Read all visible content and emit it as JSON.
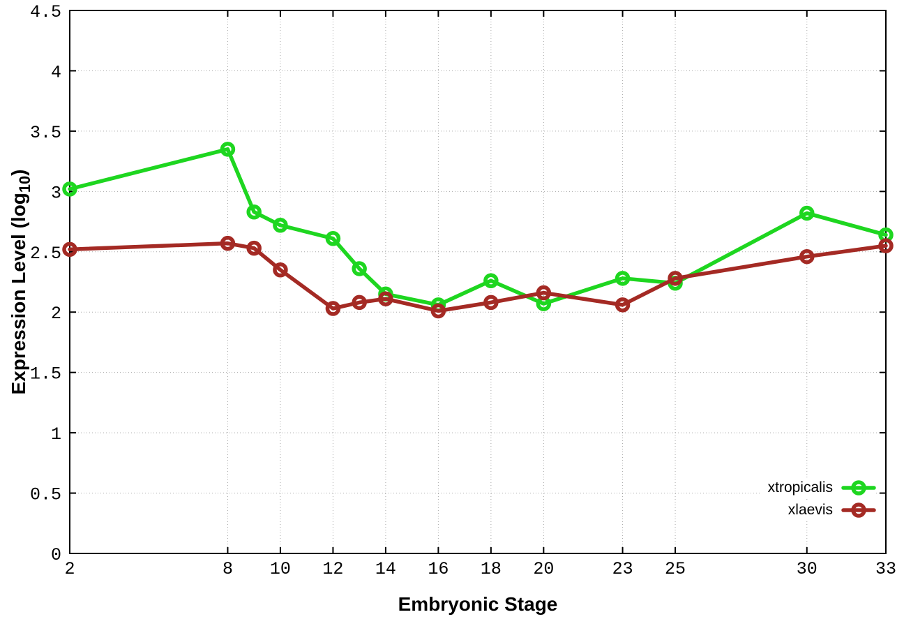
{
  "chart_data": {
    "type": "line",
    "title": "",
    "xlabel": "Embryonic Stage",
    "ylabel": {
      "text": "Expression Level (log",
      "sub": "10",
      "after": ")"
    },
    "xlim": [
      2,
      33
    ],
    "ylim": [
      0,
      4.5
    ],
    "grid": true,
    "legend_position": "bottom-right",
    "x": [
      2,
      8,
      9,
      10,
      12,
      13,
      14,
      16,
      18,
      20,
      23,
      25,
      30,
      33
    ],
    "series": [
      {
        "name": "xtropicalis",
        "color": "#1ed620",
        "values": [
          3.02,
          3.35,
          2.83,
          2.72,
          2.61,
          2.36,
          2.15,
          2.06,
          2.26,
          2.07,
          2.28,
          2.24,
          2.82,
          2.64
        ]
      },
      {
        "name": "xlaevis",
        "color": "#a42a24",
        "values": [
          2.52,
          2.57,
          2.53,
          2.35,
          2.03,
          2.08,
          2.11,
          2.01,
          2.08,
          2.16,
          2.06,
          2.28,
          2.46,
          2.55
        ]
      }
    ],
    "xticks": [
      {
        "value": 2,
        "label": "2"
      },
      {
        "value": 8,
        "label": "8"
      },
      {
        "value": 10,
        "label": "10"
      },
      {
        "value": 12,
        "label": "12"
      },
      {
        "value": 14,
        "label": "14"
      },
      {
        "value": 16,
        "label": "16"
      },
      {
        "value": 18,
        "label": "18"
      },
      {
        "value": 20,
        "label": "20"
      },
      {
        "value": 23,
        "label": "23"
      },
      {
        "value": 25,
        "label": "25"
      },
      {
        "value": 30,
        "label": "30"
      },
      {
        "value": 33,
        "label": "33"
      }
    ],
    "yticks": [
      {
        "value": 0,
        "label": "0"
      },
      {
        "value": 0.5,
        "label": "0.5"
      },
      {
        "value": 1,
        "label": "1"
      },
      {
        "value": 1.5,
        "label": "1.5"
      },
      {
        "value": 2,
        "label": "2"
      },
      {
        "value": 2.5,
        "label": "2.5"
      },
      {
        "value": 3,
        "label": "3"
      },
      {
        "value": 3.5,
        "label": "3.5"
      },
      {
        "value": 4,
        "label": "4"
      },
      {
        "value": 4.5,
        "label": "4.5"
      }
    ]
  },
  "colors": {
    "background": "#ffffff",
    "border": "#000000",
    "gridline": "#a8a8a8",
    "tick_text": "#000000"
  }
}
